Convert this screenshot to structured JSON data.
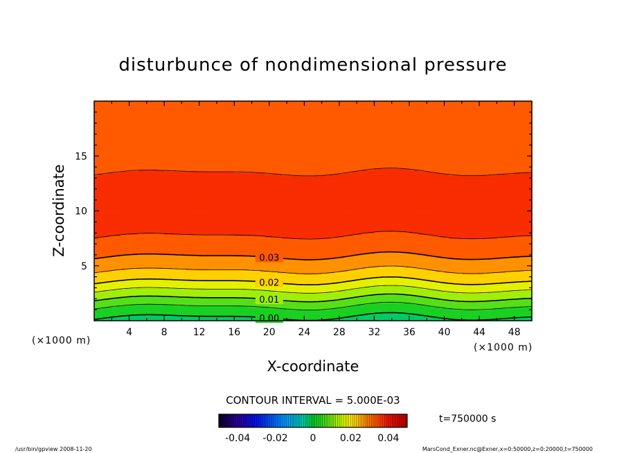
{
  "chart_data": {
    "type": "contour",
    "title": "disturbunce of nondimensional pressure",
    "xlabel": "X-coordinate",
    "ylabel": "Z-coordinate",
    "x_unit": "(×1000 m)",
    "y_unit": "(×1000 m)",
    "xlim": [
      0,
      50
    ],
    "ylim": [
      0,
      20
    ],
    "x_ticks": [
      4,
      8,
      12,
      16,
      20,
      24,
      28,
      32,
      36,
      40,
      44,
      48
    ],
    "y_ticks": [
      5,
      10,
      15
    ],
    "contour_interval_text": "CONTOUR INTERVAL = 5.000E-03",
    "contour_labels": [
      "0.03",
      "0.02",
      "0.01",
      "0.00"
    ],
    "levels": [
      0.0,
      0.005,
      0.01,
      0.015,
      0.02,
      0.025,
      0.03,
      0.035,
      0.04
    ],
    "profile": {
      "z": [
        0,
        0.5,
        1,
        1.5,
        2,
        2.5,
        3,
        3.5,
        4,
        5,
        6,
        7,
        8,
        10,
        12,
        13.5,
        15,
        16,
        17,
        18,
        19,
        20
      ],
      "value": [
        -0.001,
        0.0005,
        0.003,
        0.0065,
        0.0098,
        0.013,
        0.0162,
        0.0195,
        0.0225,
        0.0268,
        0.0305,
        0.0335,
        0.0355,
        0.037,
        0.0367,
        0.035,
        0.034,
        0.033,
        0.0322,
        0.0315,
        0.031,
        0.0308
      ]
    },
    "colorbar": {
      "tick_labels": [
        "-0.04",
        "-0.02",
        "0",
        "0.02",
        "0.04"
      ],
      "ticks": [
        -0.04,
        -0.02,
        0,
        0.02,
        0.04
      ],
      "range": [
        -0.05,
        0.05
      ]
    },
    "time_label": "t=750000 s",
    "footer_left": "/usr/bin/gpview   2008-11-20",
    "footer_right": "MarsCond_Exner.nc@Exner,x=0:50000,z=0:20000,t=750000"
  }
}
